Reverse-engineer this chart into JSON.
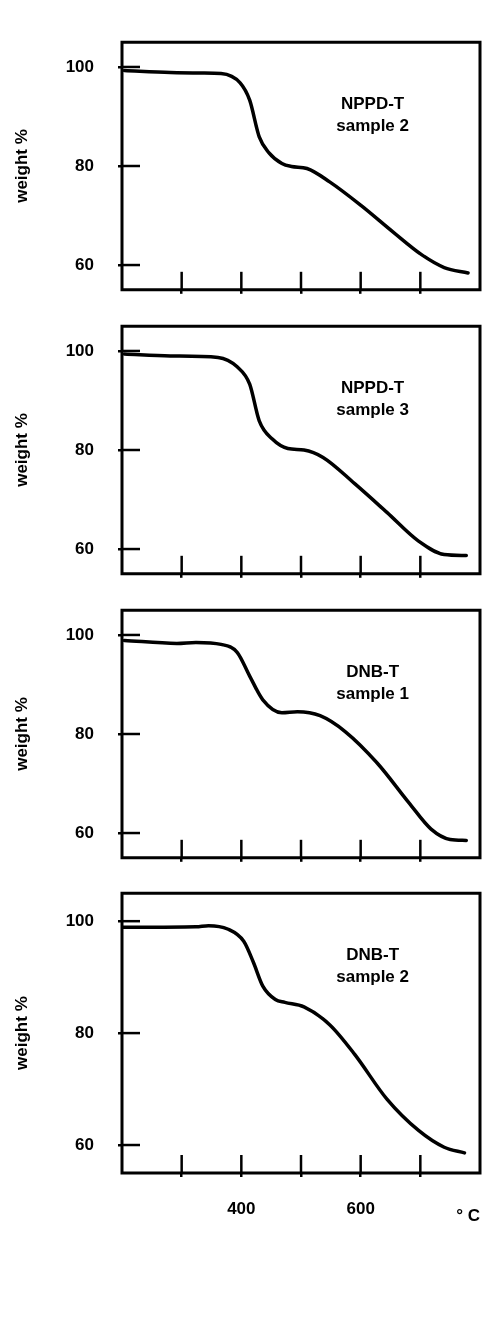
{
  "chart_data": [
    {
      "type": "line",
      "title": "NPPD-T sample 2",
      "ylabel": "weight %",
      "xlim": [
        200,
        800
      ],
      "ylim": [
        55,
        105
      ],
      "yticks": [
        60,
        80,
        100
      ],
      "xticks": [
        {
          "value": 300,
          "label": null
        },
        {
          "value": 400,
          "label": null
        },
        {
          "value": 500,
          "label": null
        },
        {
          "value": 600,
          "label": null
        },
        {
          "value": 700,
          "label": null
        }
      ],
      "tick_labels": "y",
      "grid": false,
      "legend": false,
      "marker": "none",
      "line_style": "solid",
      "series": [
        {
          "color": "#000000",
          "x": [
            204,
            281,
            334,
            366,
            398,
            414,
            430,
            446,
            468,
            484,
            510,
            548,
            601,
            654,
            702,
            740,
            780
          ],
          "values": [
            99.3,
            98.9,
            98.8,
            98.7,
            96.8,
            93.3,
            85.9,
            82.7,
            80.5,
            79.9,
            79.5,
            76.8,
            72.0,
            66.7,
            62.1,
            59.5,
            58.4
          ]
        }
      ]
    },
    {
      "type": "line",
      "title": "NPPD-T sample 3",
      "ylabel": "weight %",
      "xlim": [
        200,
        800
      ],
      "ylim": [
        55,
        105
      ],
      "yticks": [
        60,
        80,
        100
      ],
      "xticks": [
        {
          "value": 300,
          "label": null
        },
        {
          "value": 400,
          "label": null
        },
        {
          "value": 500,
          "label": null
        },
        {
          "value": 600,
          "label": null
        },
        {
          "value": 700,
          "label": null
        }
      ],
      "tick_labels": "y",
      "grid": false,
      "legend": false,
      "marker": "none",
      "line_style": "solid",
      "series": [
        {
          "color": "#000000",
          "x": [
            204,
            281,
            361,
            393,
            414,
            430,
            452,
            478,
            505,
            537,
            590,
            644,
            697,
            740,
            777
          ],
          "values": [
            99.4,
            99.0,
            98.7,
            96.8,
            93.3,
            85.9,
            82.2,
            80.3,
            80.0,
            78.5,
            73.2,
            67.4,
            61.6,
            58.9,
            58.7
          ]
        }
      ]
    },
    {
      "type": "line",
      "title": "DNB-T sample 1",
      "ylabel": "weight %",
      "xlim": [
        200,
        800
      ],
      "ylim": [
        55,
        105
      ],
      "yticks": [
        60,
        80,
        100
      ],
      "xticks": [
        {
          "value": 300,
          "label": null
        },
        {
          "value": 400,
          "label": null
        },
        {
          "value": 500,
          "label": null
        },
        {
          "value": 600,
          "label": null
        },
        {
          "value": 700,
          "label": null
        }
      ],
      "tick_labels": "y",
      "grid": false,
      "legend": false,
      "marker": "none",
      "line_style": "solid",
      "series": [
        {
          "color": "#000000",
          "x": [
            204,
            292,
            324,
            366,
            393,
            414,
            436,
            468,
            494,
            532,
            574,
            628,
            681,
            718,
            750,
            777
          ],
          "values": [
            98.9,
            98.3,
            98.5,
            98.1,
            96.5,
            91.7,
            86.9,
            84.3,
            84.5,
            83.7,
            80.5,
            74.1,
            66.1,
            60.8,
            58.7,
            58.5
          ]
        }
      ]
    },
    {
      "type": "line",
      "title": "DNB-T sample 2",
      "ylabel": "weight %",
      "xlabel": "° C",
      "xlim": [
        200,
        800
      ],
      "ylim": [
        55,
        105
      ],
      "yticks": [
        60,
        80,
        100
      ],
      "xticks": [
        {
          "value": 300,
          "label": null
        },
        400,
        {
          "value": 500,
          "label": null
        },
        600,
        {
          "value": 700,
          "label": null
        }
      ],
      "grid": false,
      "legend": false,
      "marker": "none",
      "line_style": "solid",
      "series": [
        {
          "color": "#000000",
          "x": [
            200,
            324,
            345,
            377,
            404,
            420,
            436,
            457,
            473,
            505,
            548,
            590,
            644,
            697,
            740,
            774
          ],
          "values": [
            98.9,
            99.0,
            99.2,
            98.6,
            96.4,
            92.7,
            88.4,
            86.0,
            85.5,
            84.7,
            81.5,
            76.2,
            68.2,
            62.6,
            59.6,
            58.6
          ]
        }
      ]
    }
  ]
}
